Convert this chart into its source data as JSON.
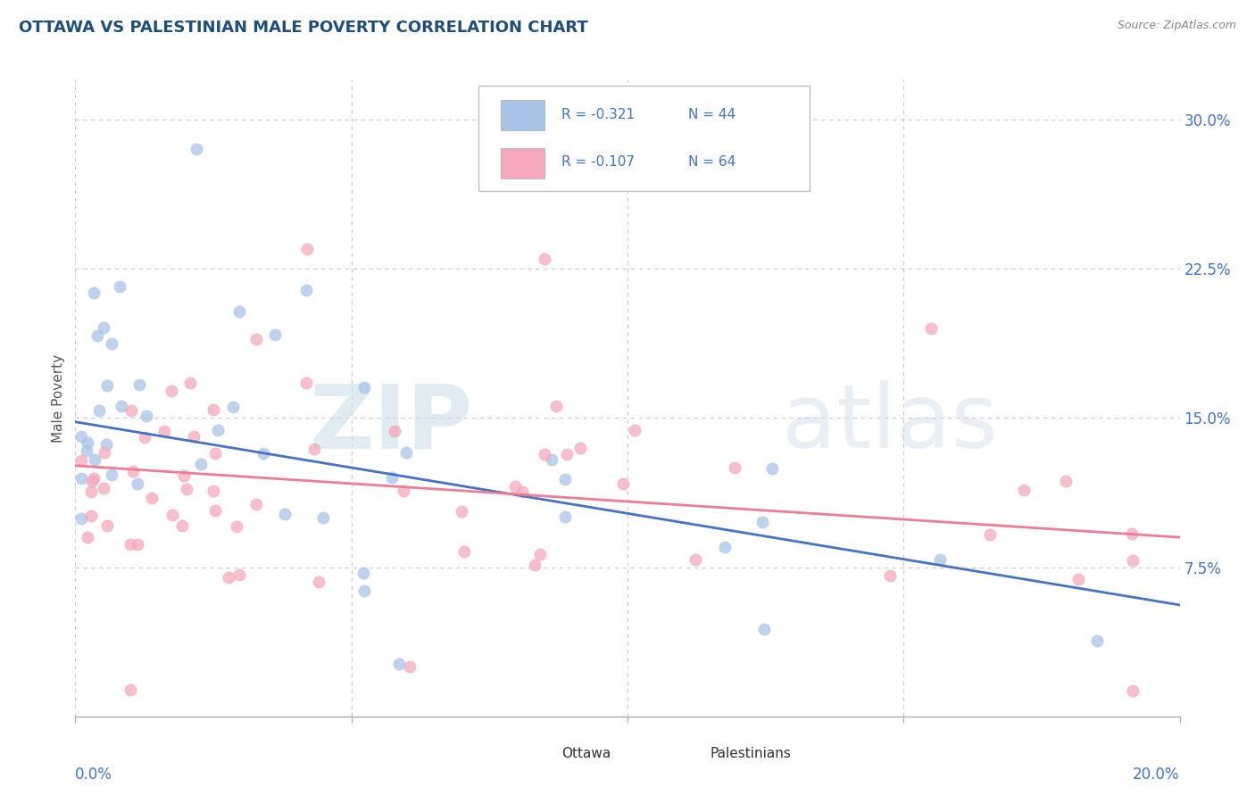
{
  "title": "OTTAWA VS PALESTINIAN MALE POVERTY CORRELATION CHART",
  "source": "Source: ZipAtlas.com",
  "ylabel": "Male Poverty",
  "xlim": [
    0.0,
    0.2
  ],
  "ylim": [
    0.0,
    0.32
  ],
  "yticks": [
    0.075,
    0.15,
    0.225,
    0.3
  ],
  "ytick_labels": [
    "7.5%",
    "15.0%",
    "22.5%",
    "30.0%"
  ],
  "xtick_positions": [
    0.0,
    0.05,
    0.1,
    0.15,
    0.2
  ],
  "grid_color": "#c8c8c8",
  "background_color": "#ffffff",
  "ottawa_color": "#aac4e8",
  "palestinian_color": "#f5a8bc",
  "ottawa_line_color": "#4472c4",
  "palestinian_line_color": "#ed7d96",
  "legend_ottawa_r": "R = -0.321",
  "legend_ottawa_n": "N = 44",
  "legend_pal_r": "R = -0.107",
  "legend_pal_n": "N = 64",
  "title_color": "#1f4e79",
  "axis_tick_color": "#4472c4",
  "ylabel_color": "#555555",
  "source_color": "#888888",
  "ottawa_line_y0": 0.148,
  "ottawa_line_y1": 0.056,
  "pal_line_y0": 0.126,
  "pal_line_y1": 0.09,
  "watermark_zip_color": "#dce8f0",
  "watermark_atlas_color": "#d0dce8"
}
